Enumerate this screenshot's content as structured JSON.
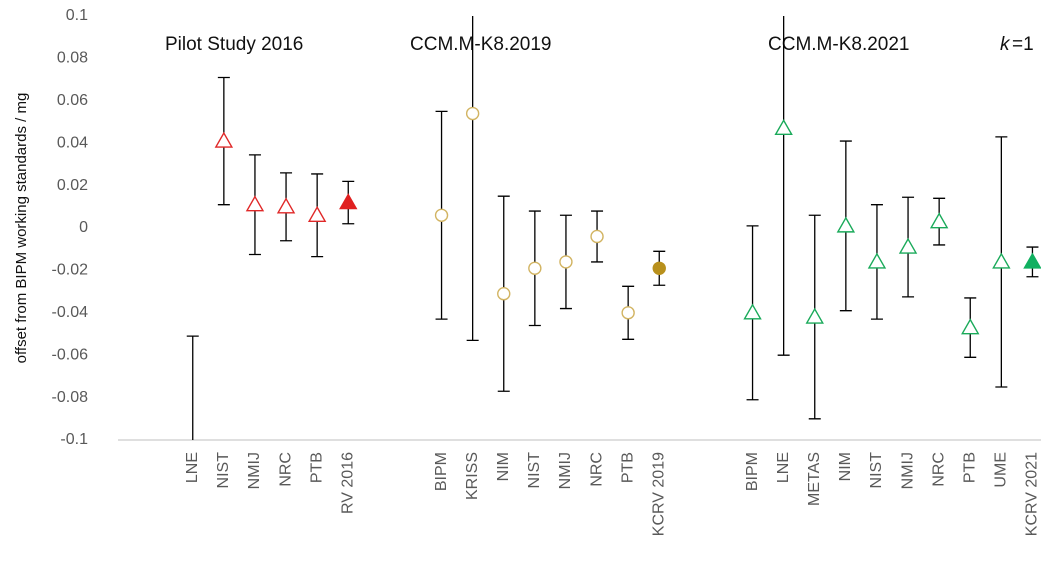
{
  "chart_data": {
    "type": "errorbar",
    "ylabel": "offset from BIPM working standards / mg",
    "annotations": [
      "Pilot Study 2016",
      "CCM.M-K8.2019",
      "CCM.M-K8.2021",
      "k",
      "=1"
    ],
    "categories": [
      null,
      null,
      "LNE",
      "NIST",
      "NMIJ",
      "NRC",
      "PTB",
      "RV 2016",
      null,
      null,
      "BIPM",
      "KRISS",
      "NIM",
      "NIST",
      "NMIJ",
      "NRC",
      "PTB",
      "KCRV 2019",
      null,
      null,
      "BIPM",
      "LNE",
      "METAS",
      "NIM",
      "NIST",
      "NMIJ",
      "NRC",
      "PTB",
      "UME",
      "KCRV 2021"
    ],
    "series": [
      {
        "color": "#e02828",
        "marker": "triangle",
        "filled": false,
        "values": [
          null,
          null,
          -0.11,
          0.041,
          0.011,
          0.01,
          0.006,
          null,
          null,
          null,
          null,
          null,
          null,
          null,
          null,
          null,
          null,
          null,
          null,
          null,
          null,
          null,
          null,
          null,
          null,
          null,
          null,
          null,
          null,
          null
        ],
        "errors": [
          null,
          null,
          0.059,
          0.03,
          0.0235,
          0.016,
          0.0195,
          null,
          null,
          null,
          null,
          null,
          null,
          null,
          null,
          null,
          null,
          null,
          null,
          null,
          null,
          null,
          null,
          null,
          null,
          null,
          null,
          null,
          null,
          null
        ]
      },
      {
        "color": "#e02020",
        "marker": "triangle",
        "filled": true,
        "values": [
          null,
          null,
          null,
          null,
          null,
          null,
          null,
          0.012,
          null,
          null,
          null,
          null,
          null,
          null,
          null,
          null,
          null,
          null,
          null,
          null,
          null,
          null,
          null,
          null,
          null,
          null,
          null,
          null,
          null,
          null
        ],
        "errors": [
          null,
          null,
          null,
          null,
          null,
          null,
          null,
          0.01,
          null,
          null,
          null,
          null,
          null,
          null,
          null,
          null,
          null,
          null,
          null,
          null,
          null,
          null,
          null,
          null,
          null,
          null,
          null,
          null,
          null,
          null
        ]
      },
      {
        "color": "#d2b462",
        "marker": "circle",
        "filled": false,
        "values": [
          null,
          null,
          null,
          null,
          null,
          null,
          null,
          null,
          null,
          null,
          0.006,
          0.054,
          -0.031,
          -0.019,
          -0.016,
          -0.004,
          -0.04,
          null,
          null,
          null,
          null,
          null,
          null,
          null,
          null,
          null,
          null,
          null,
          null,
          null
        ],
        "errors": [
          null,
          null,
          null,
          null,
          null,
          null,
          null,
          null,
          null,
          null,
          0.049,
          0.107,
          0.046,
          0.027,
          0.022,
          0.012,
          0.0125,
          null,
          null,
          null,
          null,
          null,
          null,
          null,
          null,
          null,
          null,
          null,
          null,
          null
        ]
      },
      {
        "color": "#b8901c",
        "marker": "circle",
        "filled": true,
        "values": [
          null,
          null,
          null,
          null,
          null,
          null,
          null,
          null,
          null,
          null,
          null,
          null,
          null,
          null,
          null,
          null,
          null,
          -0.019,
          null,
          null,
          null,
          null,
          null,
          null,
          null,
          null,
          null,
          null,
          null,
          null
        ],
        "errors": [
          null,
          null,
          null,
          null,
          null,
          null,
          null,
          null,
          null,
          null,
          null,
          null,
          null,
          null,
          null,
          null,
          null,
          0.008,
          null,
          null,
          null,
          null,
          null,
          null,
          null,
          null,
          null,
          null,
          null,
          null
        ]
      },
      {
        "color": "#1aaa5a",
        "marker": "triangle",
        "filled": false,
        "values": [
          null,
          null,
          null,
          null,
          null,
          null,
          null,
          null,
          null,
          null,
          null,
          null,
          null,
          null,
          null,
          null,
          null,
          null,
          null,
          null,
          -0.04,
          0.047,
          -0.042,
          0.001,
          -0.016,
          -0.009,
          0.003,
          -0.047,
          -0.016,
          null
        ],
        "errors": [
          null,
          null,
          null,
          null,
          null,
          null,
          null,
          null,
          null,
          null,
          null,
          null,
          null,
          null,
          null,
          null,
          null,
          null,
          null,
          null,
          0.041,
          0.107,
          0.048,
          0.04,
          0.027,
          0.0235,
          0.011,
          0.014,
          0.059,
          null
        ]
      },
      {
        "color": "#10b060",
        "marker": "triangle",
        "filled": true,
        "values": [
          null,
          null,
          null,
          null,
          null,
          null,
          null,
          null,
          null,
          null,
          null,
          null,
          null,
          null,
          null,
          null,
          null,
          null,
          null,
          null,
          null,
          null,
          null,
          null,
          null,
          null,
          null,
          null,
          null,
          -0.016
        ],
        "errors": [
          null,
          null,
          null,
          null,
          null,
          null,
          null,
          null,
          null,
          null,
          null,
          null,
          null,
          null,
          null,
          null,
          null,
          null,
          null,
          null,
          null,
          null,
          null,
          null,
          null,
          null,
          null,
          null,
          null,
          0.007
        ]
      }
    ],
    "ylim": [
      -0.1,
      0.1
    ],
    "yticks": [
      -0.1,
      -0.08,
      -0.06,
      -0.04,
      -0.02,
      0,
      0.02,
      0.04,
      0.06,
      0.08,
      0.1
    ],
    "grid": false
  }
}
